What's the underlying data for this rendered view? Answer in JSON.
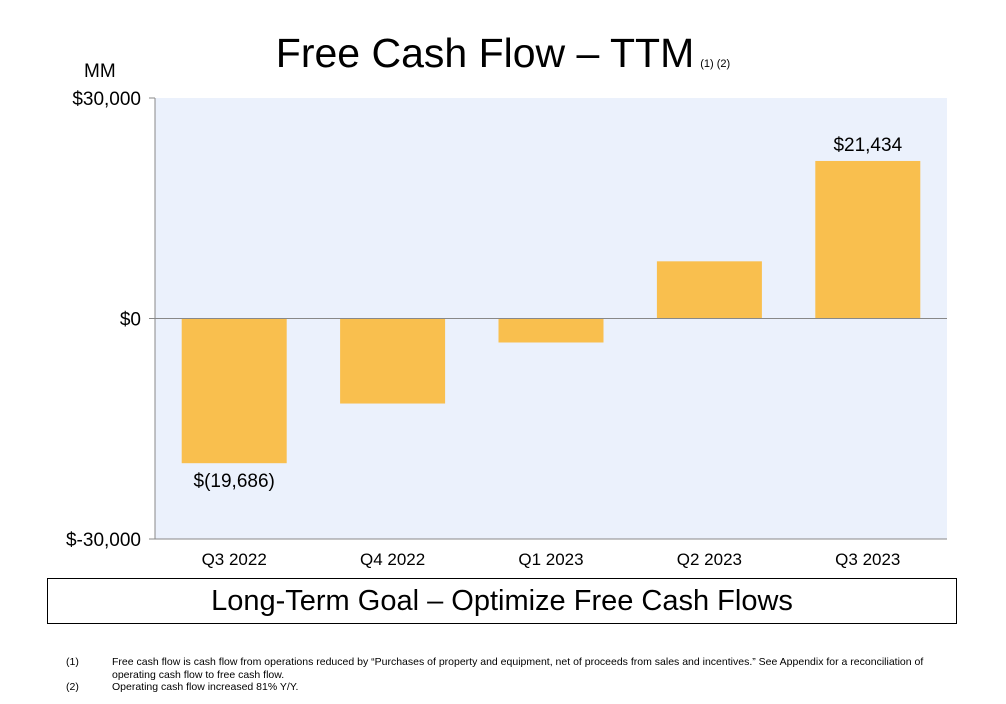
{
  "title": "Free Cash Flow – TTM",
  "title_footnote_refs": "(1) (2)",
  "unit_label": "MM",
  "goal": "Long-Term Goal – Optimize Free Cash Flows",
  "footnotes": [
    {
      "num": "(1)",
      "text": "Free cash flow is cash flow from operations reduced by “Purchases of property and equipment, net of proceeds from sales and incentives.” See Appendix for a reconciliation of operating cash flow to free cash flow."
    },
    {
      "num": "(2)",
      "text": "Operating cash flow increased 81% Y/Y."
    }
  ],
  "colors": {
    "bar": "#F9BF4E",
    "plot_bg": "#EBF1FC",
    "axis": "#888888"
  },
  "chart_data": {
    "type": "bar",
    "title": "Free Cash Flow – TTM",
    "ylabel": "MM",
    "categories": [
      "Q3 2022",
      "Q4 2022",
      "Q1 2023",
      "Q2 2023",
      "Q3 2023"
    ],
    "values": [
      -19686,
      -11569,
      -3264,
      7779,
      21434
    ],
    "data_labels": [
      "$(19,686)",
      "",
      "",
      "",
      "$21,434"
    ],
    "ylim": [
      -30000,
      30000
    ],
    "yticks": [
      30000,
      0,
      -30000
    ],
    "ytick_labels": [
      "$30,000",
      "$0",
      "$-30,000"
    ],
    "grid": false
  }
}
